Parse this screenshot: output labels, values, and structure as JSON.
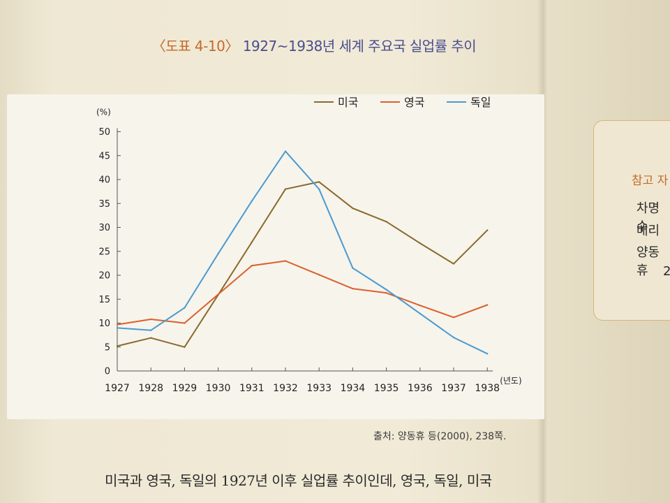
{
  "page": {
    "title_code": "〈도표 4-10〉",
    "title_text": "1927~1938년 세계 주요국 실업률 추이",
    "source": "출처: 양동휴 등(2000), 238쪽.",
    "body_text": "미국과 영국, 독일의 1927년 이후 실업률 추이인데, 영국, 독일, 미국"
  },
  "sidebar": {
    "title": "참고 자",
    "lines": [
      "차명수",
      "배리",
      "양동휴",
      "2"
    ]
  },
  "colors": {
    "usa": "#8a6a2c",
    "uk": "#d9602e",
    "germany": "#4a9ad0",
    "axis": "#555555"
  },
  "chart_data": {
    "type": "line",
    "title": "1927~1938년 세계 주요국 실업률 추이",
    "ylabel": "(%)",
    "xlabel": "(년도)",
    "ylim": [
      0,
      50
    ],
    "yticks": [
      0,
      5,
      10,
      15,
      20,
      25,
      30,
      35,
      40,
      45,
      50
    ],
    "x": [
      "1927",
      "1928",
      "1929",
      "1930",
      "1931",
      "1932",
      "1933",
      "1934",
      "1935",
      "1936",
      "1937",
      "1938"
    ],
    "legend_position": "top-right",
    "grid": false,
    "series": [
      {
        "name": "미국",
        "color_key": "usa",
        "values": [
          5.2,
          6.9,
          5.0,
          15.9,
          26.9,
          38.0,
          39.5,
          34.0,
          31.2,
          26.7,
          22.4,
          29.4
        ]
      },
      {
        "name": "영국",
        "color_key": "uk",
        "values": [
          9.7,
          10.8,
          10.0,
          16.0,
          22.0,
          23.0,
          20.1,
          17.2,
          16.3,
          13.7,
          11.2,
          13.8
        ]
      },
      {
        "name": "독일",
        "color_key": "germany",
        "values": [
          9.0,
          8.5,
          13.2,
          24.5,
          35.5,
          45.9,
          38.0,
          21.5,
          17.0,
          12.0,
          7.0,
          3.6
        ]
      }
    ]
  }
}
